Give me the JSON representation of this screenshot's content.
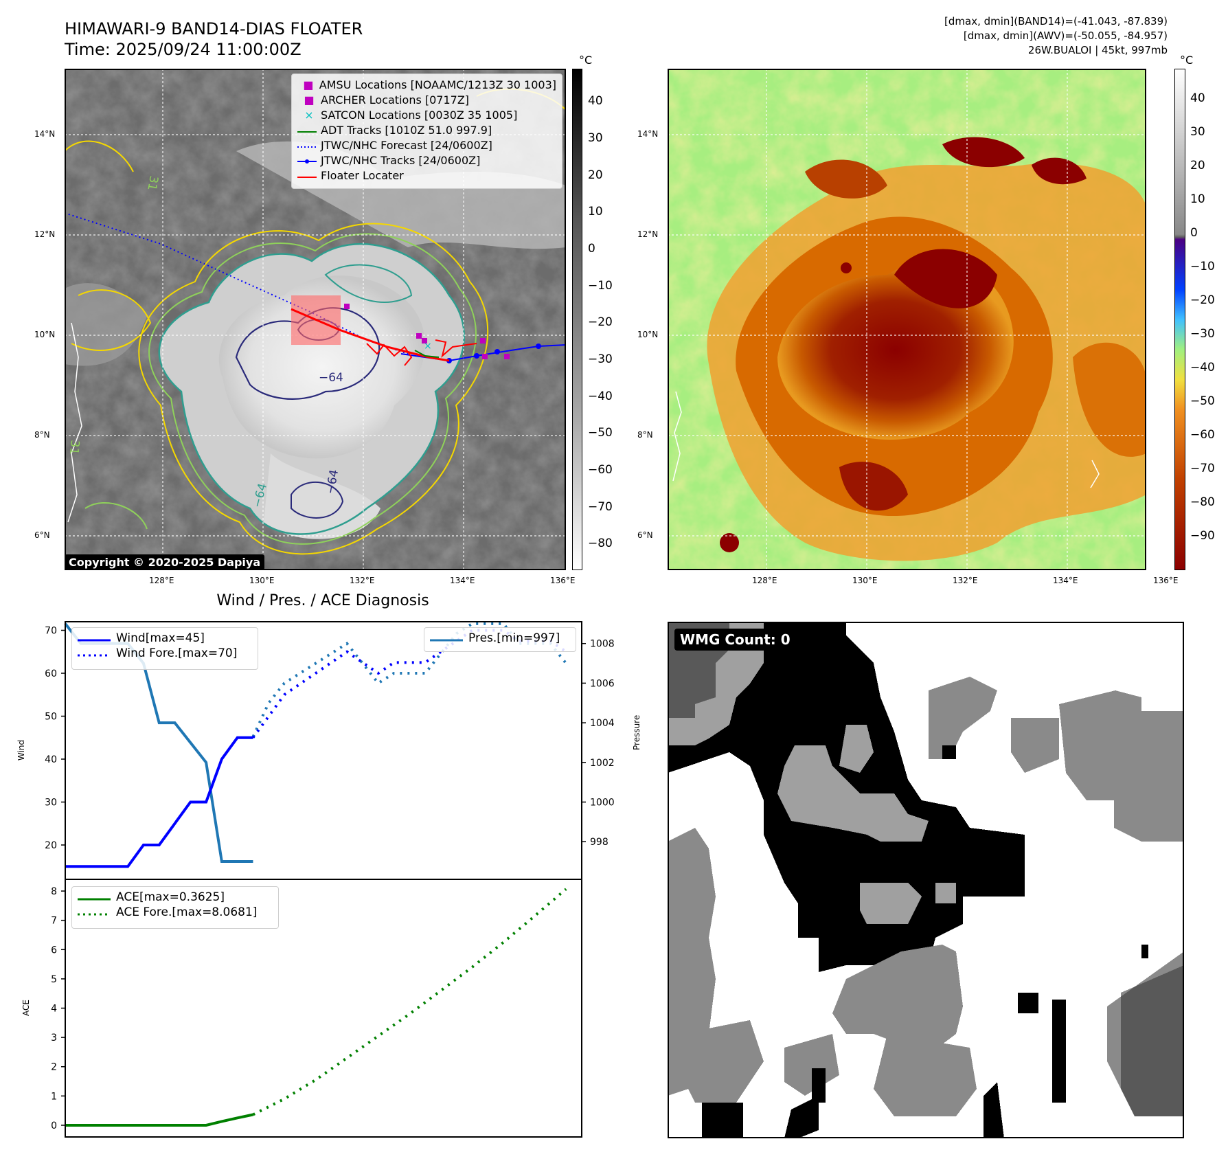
{
  "header": {
    "title_line1": "HIMAWARI-9 BAND14-DIAS FLOATER",
    "title_line2": "Time: 2025/09/24 11:00:00Z",
    "right_line1": "[dmax, dmin](BAND14)=(-41.043, -87.839)",
    "right_line2": "[dmax, dmin](AWV)=(-50.055, -84.957)",
    "right_line3": "26W.BUALOI | 45kt, 997mb"
  },
  "map_axes": {
    "lon_ticks": [
      "128°E",
      "130°E",
      "132°E",
      "134°E",
      "136°E"
    ],
    "lat_ticks": [
      "14°N",
      "12°N",
      "10°N",
      "8°N",
      "6°N"
    ]
  },
  "ir_panel": {
    "colorbar_unit": "°C",
    "colorbar_ticks": [
      "40",
      "30",
      "20",
      "10",
      "0",
      "−10",
      "−20",
      "−30",
      "−40",
      "−50",
      "−60",
      "−70",
      "−80"
    ],
    "contour_labels": [
      "−64",
      "−64",
      "−64",
      "31",
      "31"
    ],
    "legend": [
      {
        "label": "AMSU Locations [NOAAMC/1213Z 30 1003]",
        "color": "#bf00bf",
        "marker": "square"
      },
      {
        "label": "ARCHER Locations [0717Z]",
        "color": "#bf00bf",
        "marker": "square"
      },
      {
        "label": "SATCON Locations [0030Z 35 1005]",
        "color": "#00bfbf",
        "marker": "x"
      },
      {
        "label": "ADT Tracks [1010Z 51.0 997.9]",
        "color": "#007f00",
        "marker": "line"
      },
      {
        "label": "JTWC/NHC Forecast [24/0600Z]",
        "color": "#0000ff",
        "marker": "dotted"
      },
      {
        "label": "JTWC/NHC Tracks [24/0600Z]",
        "color": "#0000ff",
        "marker": "line-dot"
      },
      {
        "label": "Floater Locater",
        "color": "#ff0000",
        "marker": "line"
      }
    ],
    "copyright": "Copyright © 2020-2025 Dapiya"
  },
  "awv_panel": {
    "colorbar_unit": "°C",
    "colorbar_ticks": [
      "40",
      "30",
      "20",
      "10",
      "0",
      "−10",
      "−20",
      "−30",
      "−40",
      "−50",
      "−60",
      "−70",
      "−80",
      "−90"
    ]
  },
  "diag": {
    "title": "Wind / Pres. / ACE Diagnosis",
    "wind_ylabel": "Wind",
    "pres_ylabel": "Pressure",
    "ace_ylabel": "ACE",
    "wind_legend": [
      "Wind[max=45]",
      "Wind Fore.[max=70]"
    ],
    "pres_legend": [
      "Pres.[min=997]"
    ],
    "ace_legend": [
      "ACE[max=0.3625]",
      "ACE Fore.[max=8.0681]"
    ]
  },
  "wmg": {
    "label": "WMG Count: 0"
  },
  "colors": {
    "wind": "#0000ff",
    "pressure": "#1f77b4",
    "ace": "#008000"
  },
  "chart_data": [
    {
      "type": "line",
      "title": "Wind / Pres. / ACE Diagnosis",
      "ylabel": "Wind",
      "ylim": [
        12,
        72
      ],
      "yticks": [
        20,
        30,
        40,
        50,
        60,
        70
      ],
      "xlim": [
        0,
        33
      ],
      "series": [
        {
          "name": "Wind[max=45]",
          "style": "solid",
          "x": [
            0,
            1,
            2,
            3,
            4,
            5,
            6,
            7,
            8,
            9,
            10,
            11,
            12
          ],
          "values": [
            15,
            15,
            15,
            15,
            15,
            20,
            20,
            25,
            30,
            30,
            40,
            45,
            45
          ]
        },
        {
          "name": "Wind Fore.[max=70]",
          "style": "dotted",
          "x": [
            12,
            13,
            14,
            15,
            16,
            17,
            18,
            19,
            20,
            21,
            22,
            23,
            24,
            25,
            26,
            27,
            28,
            29,
            30,
            31,
            32
          ],
          "values": [
            45,
            50,
            55,
            57.5,
            60,
            62.5,
            65,
            62.5,
            60,
            62.5,
            62.5,
            62.5,
            65,
            67.5,
            70,
            70,
            70,
            67.5,
            67.5,
            67.5,
            65
          ]
        }
      ]
    },
    {
      "type": "line",
      "ylabel": "Pressure",
      "ylim": [
        996.1,
        1009.1
      ],
      "yticks": [
        998,
        1000,
        1002,
        1004,
        1006,
        1008
      ],
      "xlim": [
        0,
        33
      ],
      "series": [
        {
          "name": "Pres.[min=997]",
          "x": [
            0,
            1,
            2,
            3,
            4,
            5,
            6,
            7,
            8,
            9,
            10,
            11,
            12
          ],
          "values": [
            1009,
            1008,
            1008,
            1008,
            1008,
            1007,
            1004,
            1004,
            1003,
            1002,
            997,
            997,
            997
          ]
        },
        {
          "name": "",
          "style": "dotted",
          "x": [
            12,
            13,
            14,
            15,
            16,
            17,
            18,
            19,
            20,
            21,
            22,
            23,
            24,
            25,
            26,
            27,
            28,
            29,
            30,
            31,
            32
          ],
          "values": [
            1003.3,
            1005,
            1006,
            1006.5,
            1007,
            1007.5,
            1008,
            1007,
            1006,
            1006.5,
            1006.5,
            1006.5,
            1007.5,
            1008.5,
            1009,
            1009,
            1009,
            1008,
            1008,
            1008,
            1007
          ]
        }
      ]
    },
    {
      "type": "line",
      "ylabel": "ACE",
      "ylim": [
        -0.4,
        8.4
      ],
      "yticks": [
        0,
        1,
        2,
        3,
        4,
        5,
        6,
        7,
        8
      ],
      "xlim": [
        0,
        33
      ],
      "series": [
        {
          "name": "ACE[max=0.3625]",
          "style": "solid",
          "x": [
            0,
            1,
            2,
            3,
            4,
            5,
            6,
            7,
            8,
            9,
            10,
            11,
            12
          ],
          "values": [
            0,
            0,
            0,
            0,
            0,
            0,
            0,
            0,
            0,
            0,
            0.13,
            0.25,
            0.3625
          ]
        },
        {
          "name": "ACE Fore.[max=8.0681]",
          "style": "dotted",
          "x": [
            12,
            14,
            16,
            18,
            20,
            22,
            24,
            26,
            28,
            30,
            32
          ],
          "values": [
            0.3625,
            0.9,
            1.55,
            2.3,
            3.05,
            3.8,
            4.6,
            5.4,
            6.25,
            7.15,
            8.0681
          ]
        }
      ]
    }
  ]
}
